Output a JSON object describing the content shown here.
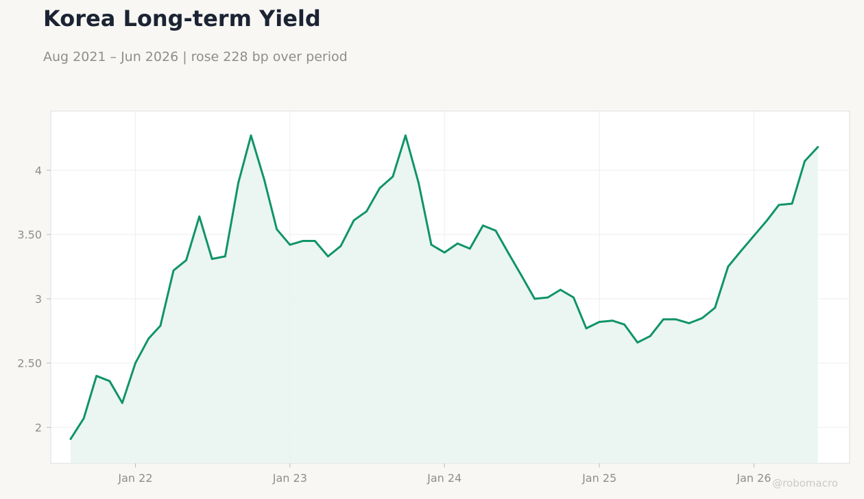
{
  "header": {
    "title": "Korea Long-term Yield",
    "subtitle": "Aug 2021 – Jun 2026 | rose 228 bp over period"
  },
  "watermark": "@robomacro",
  "colors": {
    "background": "#f8f7f4",
    "plot_background": "#ffffff",
    "line": "#0f9466",
    "fill": "#e9f4f0",
    "grid": "#eeeeee",
    "axis_text": "#8d8d8d",
    "title": "#1c2333"
  },
  "chart_data": {
    "type": "area",
    "title": "Korea Long-term Yield",
    "subtitle": "Aug 2021 – Jun 2026 | rose 228 bp over period",
    "xlabel": "",
    "ylabel": "",
    "ylim": [
      1.72,
      4.46
    ],
    "xlim": [
      "2021-06-15",
      "2026-08-15"
    ],
    "grid": true,
    "legend": "none",
    "y_ticks": [
      {
        "value": 2,
        "label": "2"
      },
      {
        "value": 2.5,
        "label": "2.50"
      },
      {
        "value": 3,
        "label": "3"
      },
      {
        "value": 3.5,
        "label": "3.50"
      },
      {
        "value": 4,
        "label": "4"
      }
    ],
    "x_ticks": [
      {
        "value": "2022-01-01",
        "label": "Jan 22"
      },
      {
        "value": "2023-01-01",
        "label": "Jan 23"
      },
      {
        "value": "2024-01-01",
        "label": "Jan 24"
      },
      {
        "value": "2025-01-01",
        "label": "Jan 25"
      },
      {
        "value": "2026-01-01",
        "label": "Jan 26"
      }
    ],
    "series": [
      {
        "x": [
          "2021-08",
          "2021-09",
          "2021-10",
          "2021-11",
          "2021-12",
          "2022-01",
          "2022-02",
          "2022-03",
          "2022-04",
          "2022-05",
          "2022-06",
          "2022-07",
          "2022-08",
          "2022-09",
          "2022-10",
          "2022-11",
          "2022-12",
          "2023-01",
          "2023-02",
          "2023-03",
          "2023-04",
          "2023-05",
          "2023-06",
          "2023-07",
          "2023-08",
          "2023-09",
          "2023-10",
          "2023-11",
          "2023-12",
          "2024-01",
          "2024-02",
          "2024-03",
          "2024-04",
          "2024-05",
          "2024-06",
          "2024-07",
          "2024-08",
          "2024-09",
          "2024-10",
          "2024-11",
          "2024-12",
          "2025-01",
          "2025-02",
          "2025-03",
          "2025-04",
          "2025-05",
          "2025-06",
          "2025-07",
          "2025-08",
          "2025-09",
          "2025-10",
          "2025-11",
          "2025-12",
          "2026-01",
          "2026-02",
          "2026-03",
          "2026-04",
          "2026-05",
          "2026-06"
        ],
        "values": [
          1.91,
          2.07,
          2.4,
          2.36,
          2.19,
          2.5,
          2.69,
          2.79,
          3.22,
          3.3,
          3.64,
          3.31,
          3.33,
          3.9,
          4.27,
          3.93,
          3.54,
          3.42,
          3.45,
          3.45,
          3.33,
          3.41,
          3.61,
          3.68,
          3.86,
          3.95,
          4.27,
          3.9,
          3.42,
          3.36,
          3.43,
          3.39,
          3.57,
          3.53,
          3.35,
          3.18,
          3.0,
          3.01,
          3.07,
          3.01,
          2.77,
          2.82,
          2.83,
          2.8,
          2.66,
          2.71,
          2.84,
          2.84,
          2.81,
          2.85,
          2.93,
          3.25,
          3.37,
          3.49,
          3.61,
          3.73,
          3.74,
          4.07,
          4.18
        ]
      }
    ]
  }
}
